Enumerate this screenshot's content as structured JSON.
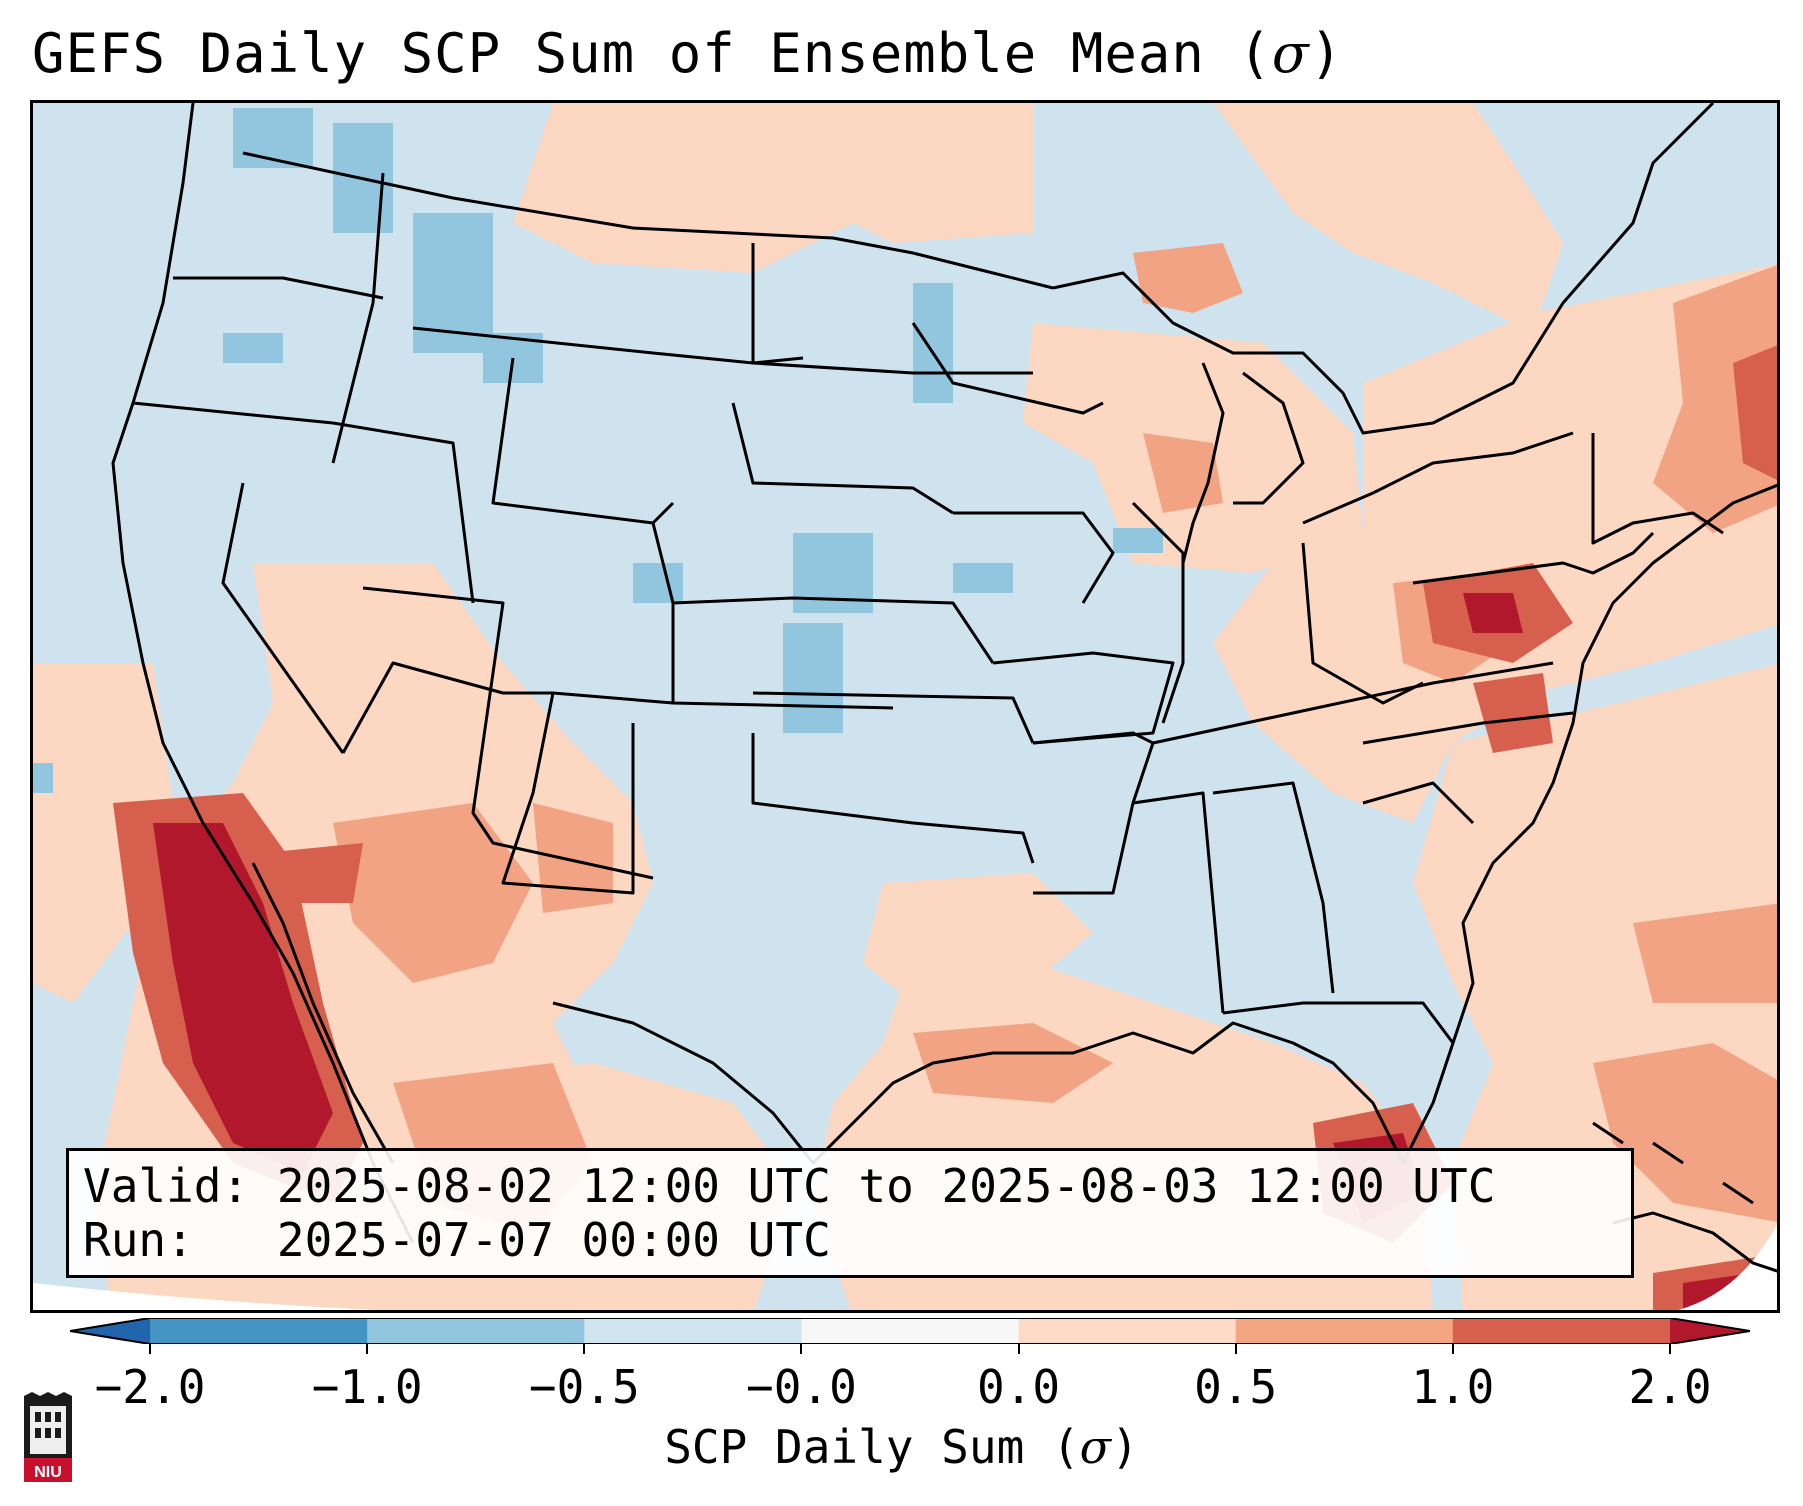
{
  "title": {
    "text": "GEFS Daily SCP Sum of Ensemble Mean (",
    "symbol": "σ",
    "close": ")"
  },
  "info": {
    "valid_label": "Valid:",
    "valid_value": "2025-08-02 12:00 UTC to 2025-08-03 12:00 UTC",
    "run_label": "Run:",
    "run_value": "2025-07-07 00:00 UTC"
  },
  "colorbar": {
    "label": "SCP Daily Sum (",
    "symbol": "σ",
    "label_close": ")",
    "ticks": [
      "−2.0",
      "−1.0",
      "−0.5",
      "−0.0",
      "0.0",
      "0.5",
      "1.0",
      "2.0"
    ],
    "bins": [
      {
        "range": "-2.0 to -1.0",
        "color": "#4393c3"
      },
      {
        "range": "-1.0 to -0.5",
        "color": "#92c5de"
      },
      {
        "range": "-0.5 to -0.0",
        "color": "#d1e5f0"
      },
      {
        "range": "-0.0 to 0.0",
        "color": "#f7f7f7"
      },
      {
        "range": "0.0 to 0.5",
        "color": "#fddbc7"
      },
      {
        "range": "0.5 to 1.0",
        "color": "#f4a582"
      },
      {
        "range": "1.0 to 2.0",
        "color": "#d6604d"
      }
    ],
    "extend_low": "#2166ac",
    "extend_high": "#b2182b"
  },
  "logo": {
    "text": "NIU"
  },
  "colors": {
    "neutral_blue": "#cfe3ef",
    "light_red": "#fcd7c2",
    "mid_red": "#f2a384",
    "strong_red": "#d6604d",
    "dark_red": "#b2182b",
    "mid_blue": "#92c5de",
    "border": "#000000"
  }
}
